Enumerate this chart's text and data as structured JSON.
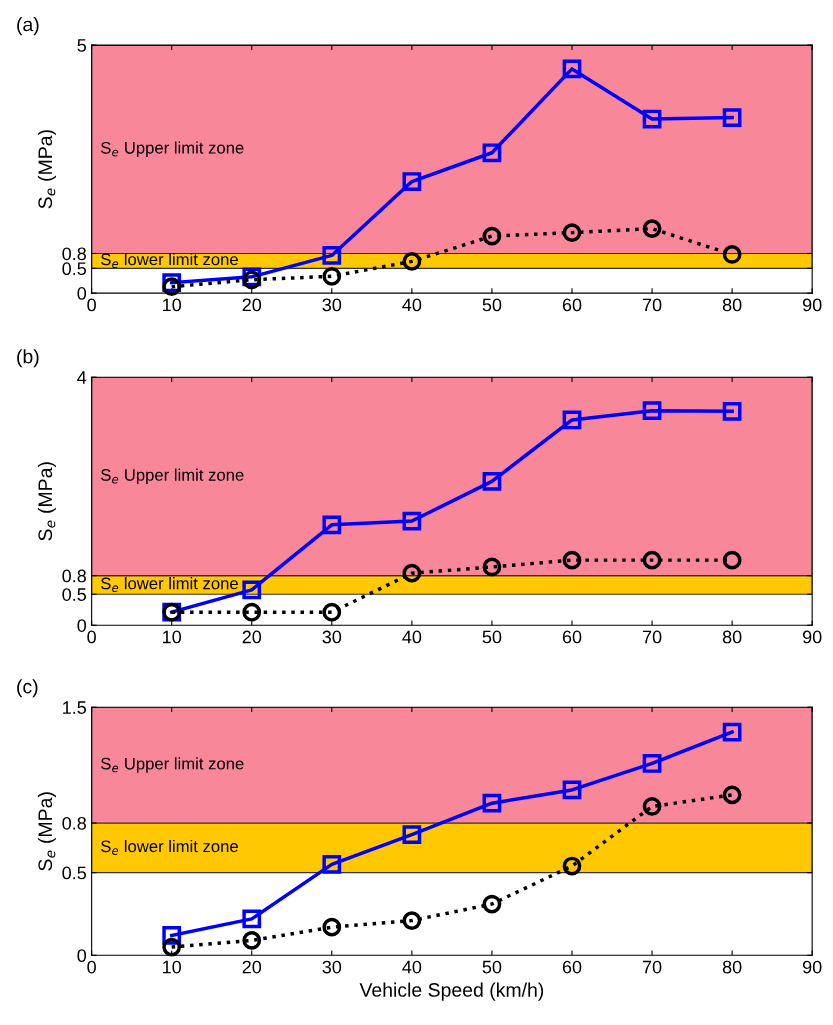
{
  "chart_data": [
    {
      "type": "line",
      "title": "(a)",
      "ylabel": "S$_{e}$ (MPa)",
      "x": [
        10,
        20,
        30,
        40,
        50,
        60,
        70,
        80
      ],
      "xlim": [
        0,
        90
      ],
      "xticks": [
        0,
        10,
        20,
        30,
        40,
        50,
        60,
        70,
        80,
        90
      ],
      "ylim": [
        0,
        5
      ],
      "yticks": [
        0,
        0.5,
        0.8,
        5
      ],
      "grid": false,
      "bands": [
        {
          "axis": "y",
          "from": 0.5,
          "to": 0.8,
          "label": "S$_{e}$ lower limit zone",
          "color": "#ffc800"
        },
        {
          "axis": "y",
          "from": 0.8,
          "to": 5,
          "label": "S$_{e}$ Upper limit zone",
          "color": "#f8879a"
        }
      ],
      "series": [
        {
          "color": "#0000ff",
          "marker": "square",
          "line_style": "solid",
          "values": [
            0.21,
            0.33,
            0.76,
            2.25,
            2.83,
            4.52,
            3.51,
            3.54
          ]
        },
        {
          "color": "#000000",
          "marker": "circle",
          "line_style": "dotted",
          "values": [
            0.13,
            0.27,
            0.34,
            0.64,
            1.15,
            1.22,
            1.3,
            0.78
          ]
        }
      ]
    },
    {
      "type": "line",
      "title": "(b)",
      "ylabel": "S$_{e}$ (MPa)",
      "x": [
        10,
        20,
        30,
        40,
        50,
        60,
        70,
        80
      ],
      "xlim": [
        0,
        90
      ],
      "xticks": [
        0,
        10,
        20,
        30,
        40,
        50,
        60,
        70,
        80,
        90
      ],
      "ylim": [
        0,
        4
      ],
      "yticks": [
        0,
        0.5,
        0.8,
        4
      ],
      "grid": false,
      "bands": [
        {
          "axis": "y",
          "from": 0.5,
          "to": 0.8,
          "label": "S$_{e}$ lower limit zone",
          "color": "#ffc800"
        },
        {
          "axis": "y",
          "from": 0.8,
          "to": 4,
          "label": "S$_{e}$ Upper limit zone",
          "color": "#f8879a"
        }
      ],
      "series": [
        {
          "color": "#0000ff",
          "marker": "square",
          "line_style": "solid",
          "values": [
            0.21,
            0.57,
            1.62,
            1.68,
            2.32,
            3.31,
            3.46,
            3.45
          ]
        },
        {
          "color": "#000000",
          "marker": "circle",
          "line_style": "dotted",
          "values": [
            0.21,
            0.21,
            0.21,
            0.84,
            0.94,
            1.05,
            1.05,
            1.05
          ]
        }
      ]
    },
    {
      "type": "line",
      "title": "(c)",
      "xlabel": "Vehicle Speed (km/h)",
      "ylabel": "S$_{e}$ (MPa)",
      "x": [
        10,
        20,
        30,
        40,
        50,
        60,
        70,
        80
      ],
      "xlim": [
        0,
        90
      ],
      "xticks": [
        0,
        10,
        20,
        30,
        40,
        50,
        60,
        70,
        80,
        90
      ],
      "ylim": [
        0,
        1.5
      ],
      "yticks": [
        0,
        0.5,
        0.8,
        1.5
      ],
      "grid": false,
      "bands": [
        {
          "axis": "y",
          "from": 0.5,
          "to": 0.8,
          "label": "S$_{e}$ lower limit zone",
          "color": "#ffc800"
        },
        {
          "axis": "y",
          "from": 0.8,
          "to": 1.5,
          "label": "S$_{e}$ Upper limit zone",
          "color": "#f8879a"
        }
      ],
      "series": [
        {
          "color": "#0000ff",
          "marker": "square",
          "line_style": "solid",
          "values": [
            0.12,
            0.22,
            0.55,
            0.73,
            0.92,
            1.0,
            1.16,
            1.35
          ]
        },
        {
          "color": "#000000",
          "marker": "circle",
          "line_style": "dotted",
          "values": [
            0.05,
            0.09,
            0.17,
            0.21,
            0.31,
            0.54,
            0.9,
            0.97
          ]
        }
      ]
    }
  ]
}
